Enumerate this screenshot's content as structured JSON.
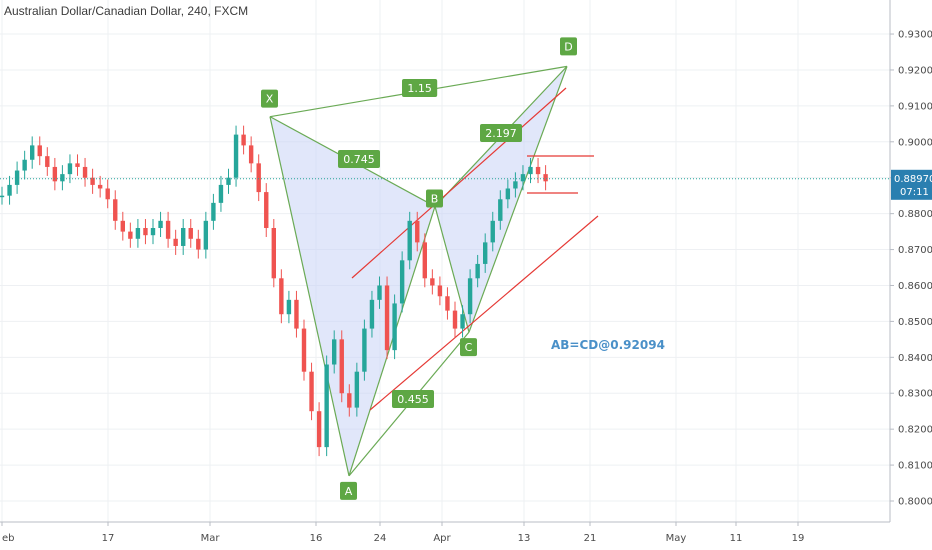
{
  "header": {
    "title": "Australian Dollar/Canadian Dollar, 240, FXCM"
  },
  "chart_data": {
    "type": "line",
    "title": "Australian Dollar/Canadian Dollar, 240, FXCM",
    "ylim": [
      0.795,
      0.935
    ],
    "y_ticks": [
      "0.80000",
      "0.81000",
      "0.82000",
      "0.83000",
      "0.84000",
      "0.85000",
      "0.86000",
      "0.87000",
      "0.88000",
      "0.89000",
      "0.90000",
      "0.91000",
      "0.92000",
      "0.93000"
    ],
    "x_ticks": [
      "eb",
      "17",
      "Mar",
      "16",
      "24",
      "Apr",
      "13",
      "21",
      "May",
      "11",
      "19"
    ],
    "last_price": "0.88970",
    "countdown": "07:11",
    "series": [
      {
        "values": [
          0.885,
          0.888,
          0.892,
          0.895,
          0.899,
          0.896,
          0.893,
          0.889,
          0.891,
          0.894,
          0.893,
          0.89,
          0.888,
          0.887,
          0.884,
          0.878,
          0.875,
          0.873,
          0.876,
          0.874,
          0.876,
          0.878,
          0.873,
          0.871,
          0.876,
          0.873,
          0.87,
          0.878,
          0.883,
          0.888,
          0.89,
          0.902,
          0.899,
          0.894,
          0.886,
          0.876,
          0.862,
          0.852,
          0.856,
          0.848,
          0.836,
          0.825,
          0.815,
          0.838,
          0.845,
          0.83,
          0.826,
          0.836,
          0.848,
          0.856,
          0.86,
          0.842,
          0.855,
          0.867,
          0.878,
          0.872,
          0.862,
          0.86,
          0.857,
          0.853,
          0.848,
          0.852,
          0.862,
          0.866,
          0.872,
          0.878,
          0.884,
          0.887,
          0.889,
          0.891,
          0.893,
          0.891,
          0.889
        ]
      }
    ],
    "harmonic_points": [
      {
        "label": "X",
        "value": 0.907
      },
      {
        "label": "A",
        "value": 0.807
      },
      {
        "label": "B",
        "value": 0.882
      },
      {
        "label": "C",
        "value": 0.847
      },
      {
        "label": "D",
        "value": 0.921
      }
    ],
    "ratios": [
      "0.745",
      "0.455",
      "2.197",
      "1.15"
    ],
    "annotation": "AB=CD@0.92094",
    "colors": {
      "up": "#26a69a",
      "down": "#ef5350",
      "pattern_line": "#6aaa55",
      "pattern_fill": "#c9d4f5",
      "label_bg": "#5ea744",
      "trendline": "#e53935",
      "note": "#4a90c8",
      "last_price_bg": "#2a7fb0"
    },
    "grid": true
  }
}
